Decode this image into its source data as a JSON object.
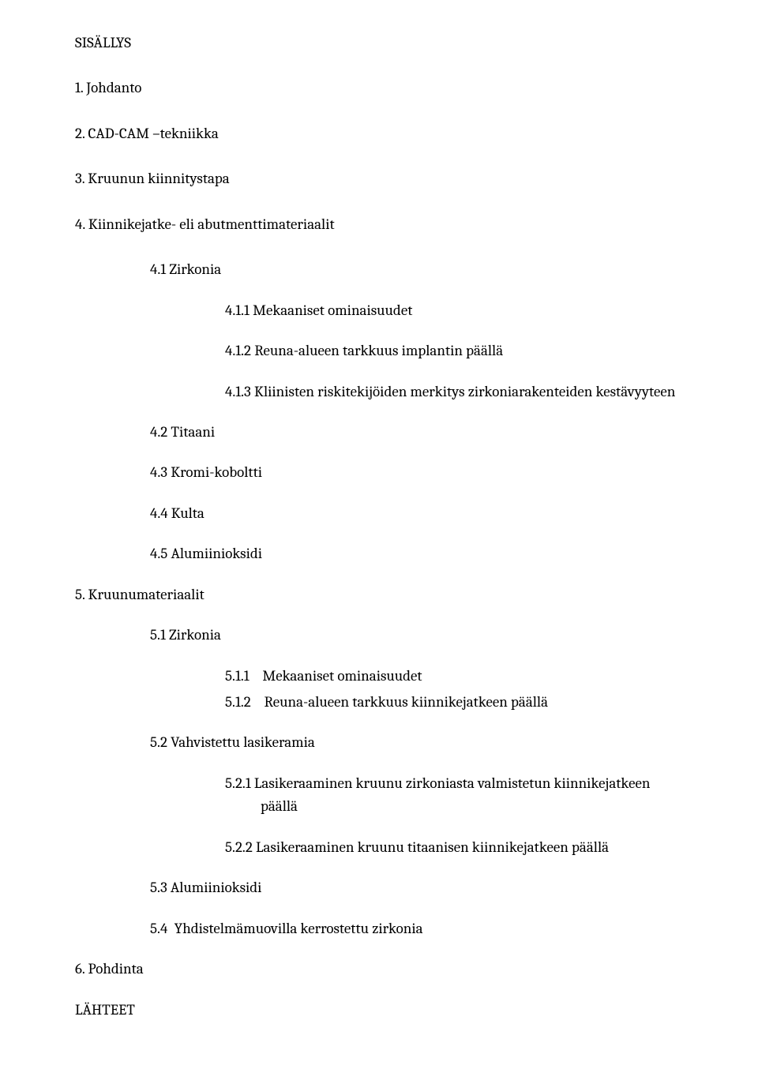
{
  "header": "SISÄLLYS",
  "top": {
    "i1": "1. Johdanto",
    "i2": "2. CAD-CAM –tekniikka",
    "i3": "3. Kruunun kiinnitystapa",
    "i4": "4. Kiinnikejatke- eli abutmenttimateriaalit"
  },
  "sec4": {
    "s41": "4.1 Zirkonia",
    "s411": "4.1.1 Mekaaniset ominaisuudet",
    "s412": "4.1.2 Reuna-alueen tarkkuus implantin päällä",
    "s413": "4.1.3 Kliinisten riskitekijöiden merkitys zirkoniarakenteiden kestävyyteen",
    "s42": "4.2 Titaani",
    "s43": "4.3 Kromi-koboltti",
    "s44": "4.4 Kulta",
    "s45": "4.5 Alumiinioksidi"
  },
  "sec5": {
    "title": "5. Kruunumateriaalit",
    "s51": "5.1 Zirkonia",
    "s511_num": "5.1.1",
    "s511_txt": "Mekaaniset ominaisuudet",
    "s512_num": "5.1.2",
    "s512_txt": "Reuna-alueen tarkkuus kiinnikejatkeen päällä",
    "s52": "5.2 Vahvistettu lasikeramia",
    "s521": "5.2.1 Lasikeraaminen kruunu zirkoniasta valmistetun kiinnikejatkeen päällä",
    "s522": "5.2.2 Lasikeraaminen kruunu titaanisen kiinnikejatkeen päällä",
    "s53": "5.3 Alumiinioksidi",
    "s54_num": "5.4",
    "s54_txt": "Yhdistelmämuovilla kerrostettu zirkonia"
  },
  "footer": {
    "i6": "6. Pohdinta",
    "refs": "LÄHTEET"
  }
}
